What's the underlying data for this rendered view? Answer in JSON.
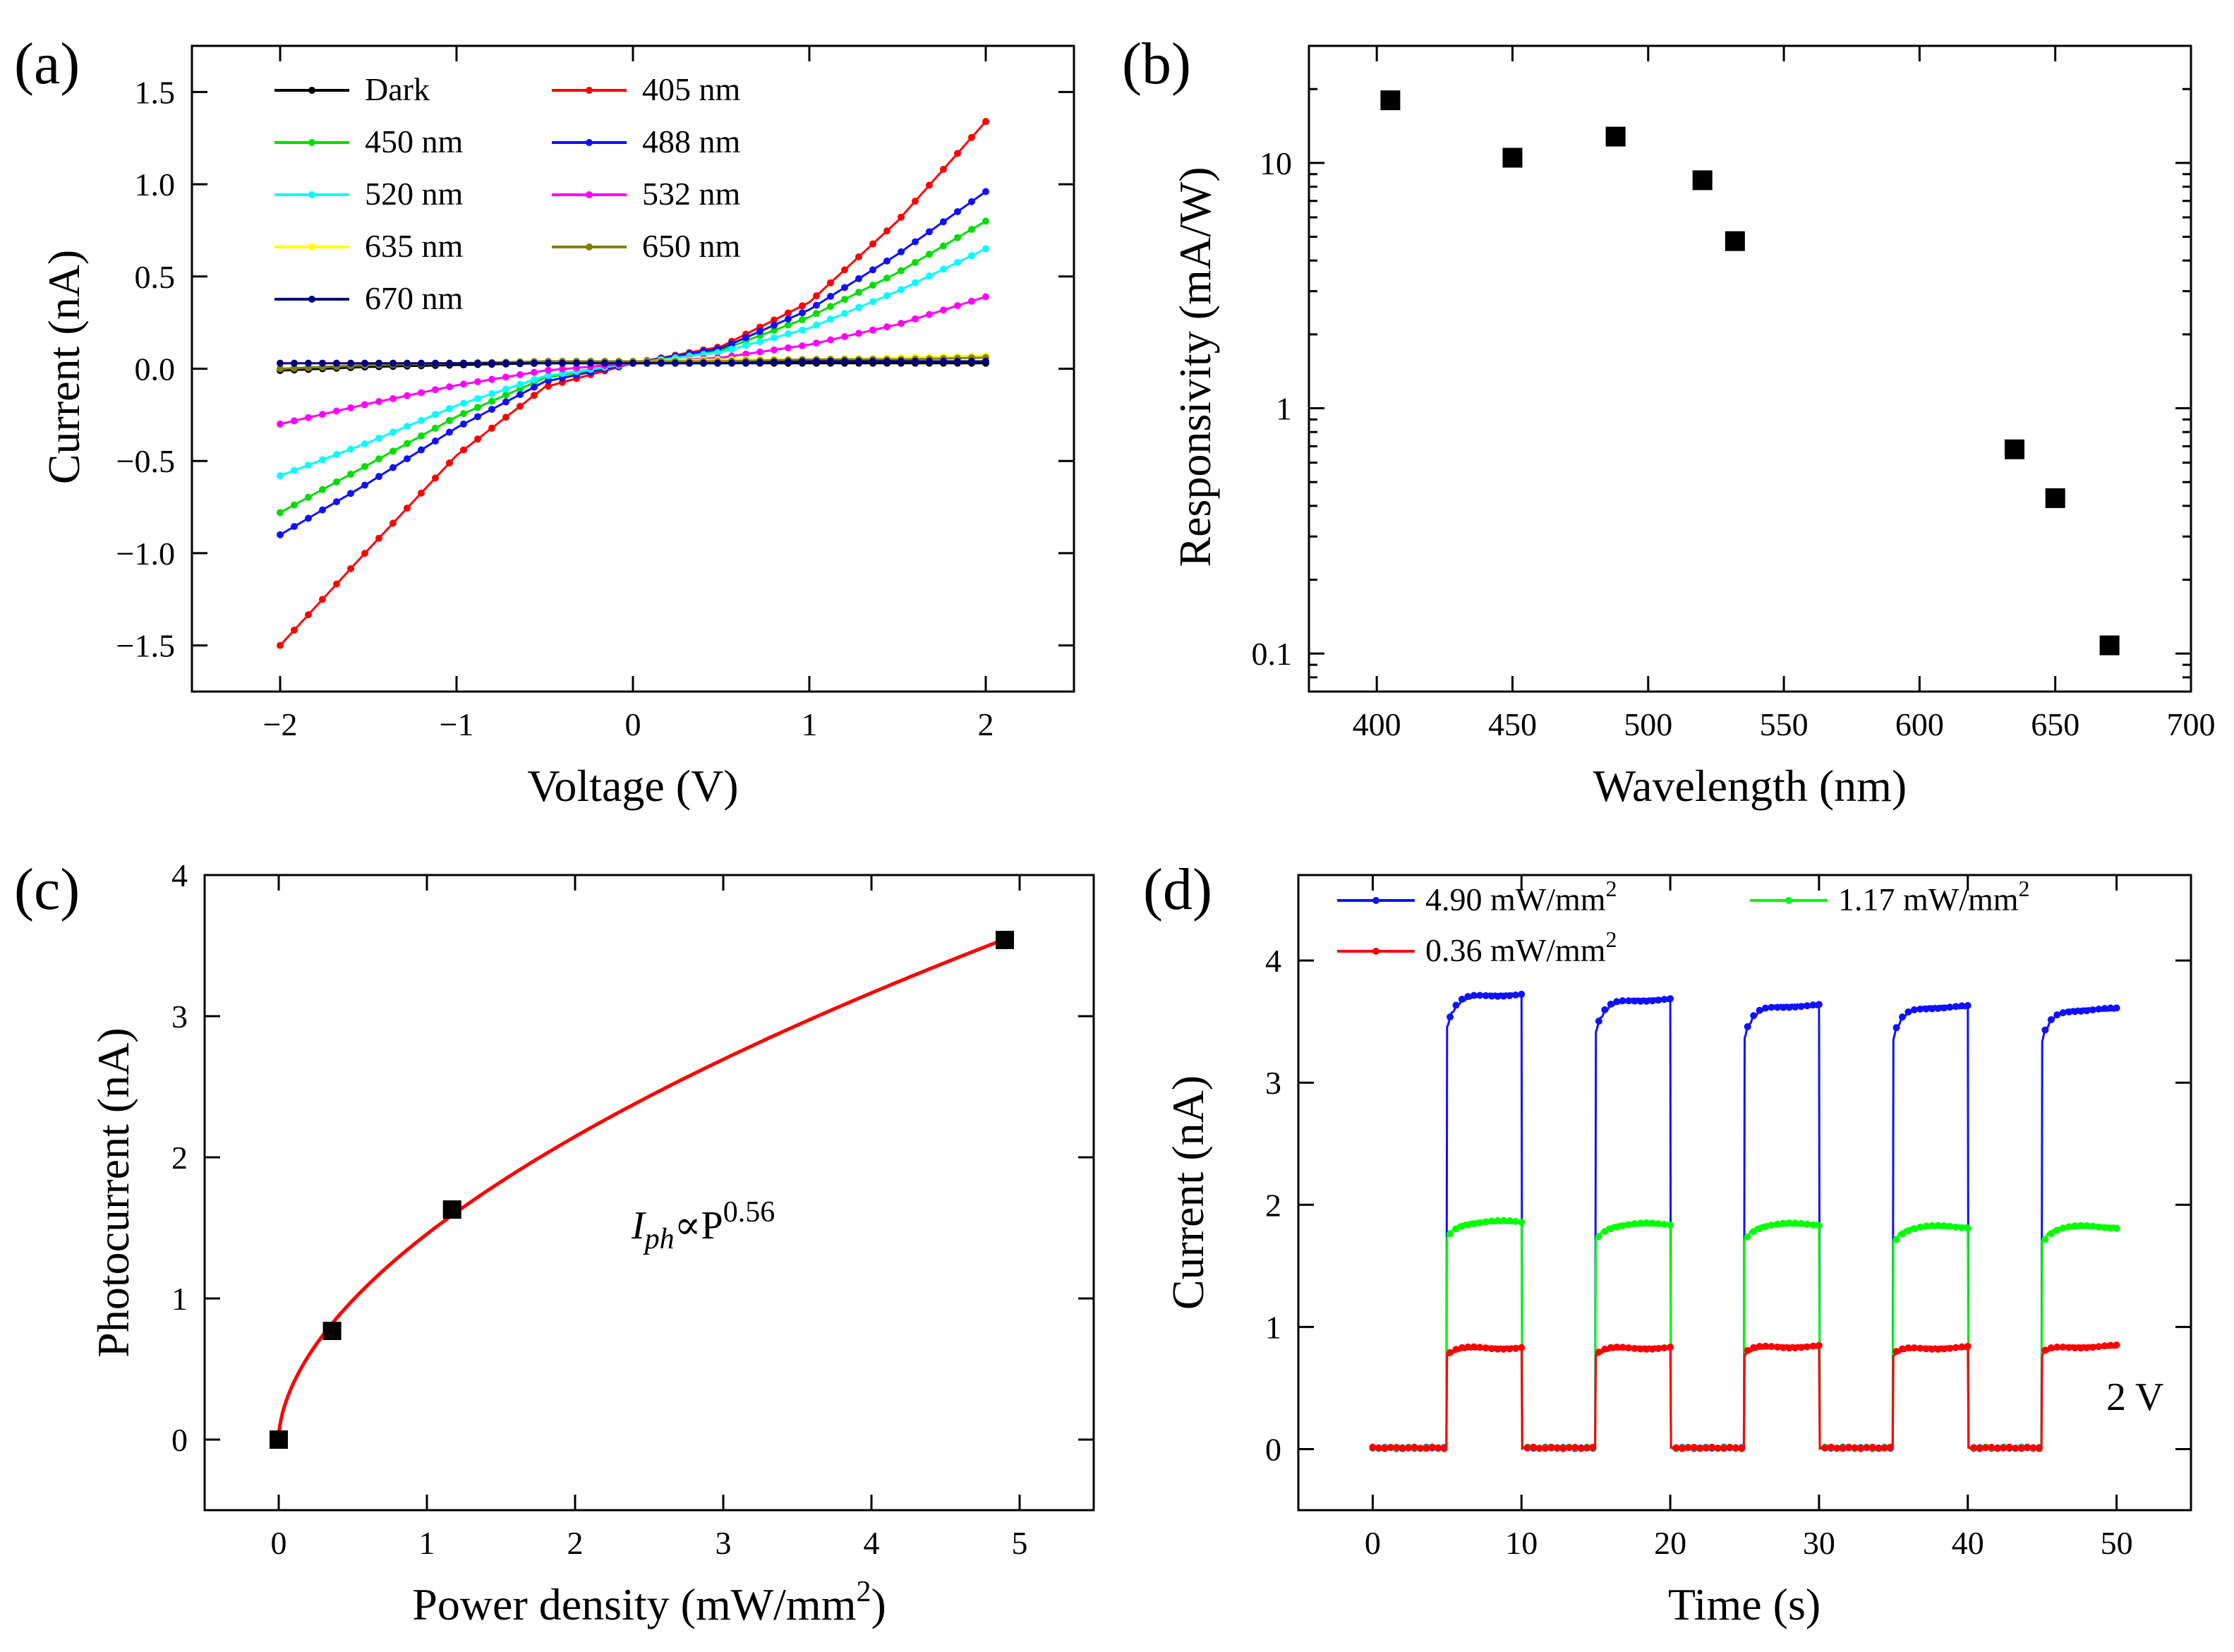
{
  "panels": [
    {
      "key": "a",
      "label": "(a)",
      "xlabel": "Voltage (V)",
      "ylabel": "Current (nA)",
      "xlim": [
        -2.5,
        2.5
      ],
      "ylim": [
        -1.75,
        1.75
      ],
      "xticks": [
        -2,
        -1,
        0,
        1,
        2
      ],
      "xtick_labels": [
        "−2",
        "−1",
        "0",
        "1",
        "2"
      ],
      "yticks": [
        -1.5,
        -1.0,
        -0.5,
        0.0,
        0.5,
        1.0,
        1.5
      ],
      "ytick_labels": [
        "−1.5",
        "−1.0",
        "−0.5",
        "0.0",
        "0.5",
        "1.0",
        "1.5"
      ],
      "legend": [
        "Dark",
        "405 nm",
        "450 nm",
        "488 nm",
        "520 nm",
        "532 nm",
        "635 nm",
        "650 nm",
        "670 nm"
      ]
    },
    {
      "key": "b",
      "label": "(b)",
      "xlabel": "Wavelength (nm)",
      "ylabel": "Responsivity (mA/W)",
      "xlim": [
        375,
        700
      ],
      "ylim_log": [
        0.07,
        30
      ],
      "xticks": [
        400,
        450,
        500,
        550,
        600,
        650,
        700
      ],
      "xtick_labels": [
        "400",
        "450",
        "500",
        "550",
        "600",
        "650",
        "700"
      ],
      "yticks": [
        0.1,
        1,
        10
      ],
      "ytick_labels": [
        "0.1",
        "1",
        "10"
      ]
    },
    {
      "key": "c",
      "label": "(c)",
      "xlabel": "Power density (mW/mm",
      "xlabel_sup": "2",
      "xlabel_end": ")",
      "ylabel": "Photocurrent (nA)",
      "xlim": [
        -0.5,
        5.5
      ],
      "ylim": [
        -0.5,
        4
      ],
      "xticks": [
        0,
        1,
        2,
        3,
        4,
        5
      ],
      "xtick_labels": [
        "0",
        "1",
        "2",
        "3",
        "4",
        "5"
      ],
      "yticks": [
        0,
        1,
        2,
        3,
        4
      ],
      "ytick_labels": [
        "0",
        "1",
        "2",
        "3",
        "4"
      ],
      "annotation_main": "I",
      "annotation_sub": "ph",
      "annotation_mid": "∝P",
      "annotation_sup": "0.56"
    },
    {
      "key": "d",
      "label": "(d)",
      "xlabel": "Time (s)",
      "ylabel": "Current (nA)",
      "xlim": [
        -5,
        55
      ],
      "ylim": [
        -0.5,
        4.7
      ],
      "xticks": [
        0,
        10,
        20,
        30,
        40,
        50
      ],
      "xtick_labels": [
        "0",
        "10",
        "20",
        "30",
        "40",
        "50"
      ],
      "yticks": [
        0,
        1,
        2,
        3,
        4
      ],
      "ytick_labels": [
        "0",
        "1",
        "2",
        "3",
        "4"
      ],
      "legend": [
        "4.90 mW/mm",
        "1.17 mW/mm",
        "0.36 mW/mm"
      ],
      "legend_sup": "2",
      "annotation": "2 V"
    }
  ],
  "colors": {
    "dark": "#000000",
    "nm405": "#ff0000",
    "nm450": "#00dd00",
    "nm488": "#1010ff",
    "nm520": "#00ffff",
    "nm532": "#ff00ff",
    "nm635": "#ffff00",
    "nm650": "#808000",
    "nm670": "#000080",
    "fit": "#ff0000",
    "high": "#1010ff",
    "mid": "#00ff00",
    "low": "#ff0000"
  },
  "chart_data": [
    {
      "panel": "a",
      "type": "line",
      "title": "",
      "xlabel": "Voltage (V)",
      "ylabel": "Current (nA)",
      "xlim": [
        -2.5,
        2.5
      ],
      "ylim": [
        -1.75,
        1.75
      ],
      "x": [
        -2.0,
        -1.5,
        -1.0,
        -0.5,
        0.0,
        0.5,
        1.0,
        1.5,
        2.0
      ],
      "series": [
        {
          "name": "Dark",
          "values": [
            -0.01,
            0.01,
            0.02,
            0.03,
            0.03,
            0.03,
            0.03,
            0.03,
            0.03
          ]
        },
        {
          "name": "405 nm",
          "values": [
            -1.5,
            -0.98,
            -0.47,
            -0.1,
            0.03,
            0.12,
            0.36,
            0.8,
            1.34
          ]
        },
        {
          "name": "450 nm",
          "values": [
            -0.78,
            -0.52,
            -0.26,
            -0.05,
            0.03,
            0.1,
            0.28,
            0.52,
            0.8
          ]
        },
        {
          "name": "488 nm",
          "values": [
            -0.9,
            -0.62,
            -0.32,
            -0.07,
            0.03,
            0.11,
            0.32,
            0.62,
            0.96
          ]
        },
        {
          "name": "520 nm",
          "values": [
            -0.58,
            -0.4,
            -0.2,
            -0.04,
            0.03,
            0.09,
            0.22,
            0.42,
            0.65
          ]
        },
        {
          "name": "532 nm",
          "values": [
            -0.3,
            -0.19,
            -0.09,
            -0.01,
            0.03,
            0.06,
            0.13,
            0.24,
            0.39
          ]
        },
        {
          "name": "635 nm",
          "values": [
            0.0,
            0.02,
            0.03,
            0.04,
            0.04,
            0.05,
            0.05,
            0.06,
            0.07
          ]
        },
        {
          "name": "650 nm",
          "values": [
            0.0,
            0.02,
            0.03,
            0.04,
            0.04,
            0.04,
            0.05,
            0.05,
            0.06
          ]
        },
        {
          "name": "670 nm",
          "values": [
            0.03,
            0.03,
            0.03,
            0.03,
            0.03,
            0.03,
            0.04,
            0.04,
            0.04
          ]
        }
      ]
    },
    {
      "panel": "b",
      "type": "scatter",
      "title": "",
      "xlabel": "Wavelength (nm)",
      "ylabel": "Responsivity (mA/W)",
      "yscale": "log",
      "xlim": [
        375,
        700
      ],
      "ylim": [
        0.07,
        30
      ],
      "x": [
        405,
        450,
        488,
        520,
        532,
        635,
        650,
        670
      ],
      "values": [
        18.0,
        10.5,
        12.8,
        8.5,
        4.8,
        0.68,
        0.43,
        0.108
      ]
    },
    {
      "panel": "c",
      "type": "scatter",
      "title": "",
      "xlabel": "Power density (mW/mm2)",
      "ylabel": "Photocurrent (nA)",
      "xlim": [
        -0.5,
        5.5
      ],
      "ylim": [
        -0.5,
        4
      ],
      "x": [
        0,
        0.36,
        1.17,
        4.9
      ],
      "values": [
        0,
        0.77,
        1.63,
        3.54
      ],
      "fit": {
        "type": "power",
        "coefficient": 1.456,
        "exponent": 0.56,
        "x_range": [
          0,
          4.9
        ]
      },
      "annotation": "Iph∝P0.56"
    },
    {
      "panel": "d",
      "type": "line",
      "title": "",
      "xlabel": "Time (s)",
      "ylabel": "Current (nA)",
      "xlim": [
        -5,
        55
      ],
      "ylim": [
        -0.5,
        4.7
      ],
      "on_intervals": [
        [
          5,
          10
        ],
        [
          15,
          20
        ],
        [
          25,
          30
        ],
        [
          35,
          40
        ],
        [
          45,
          50
        ]
      ],
      "series": [
        {
          "name": "4.90 mW/mm2",
          "dark": 0.01,
          "on_levels": [
            3.72,
            3.68,
            3.63,
            3.62,
            3.6
          ]
        },
        {
          "name": "1.17 mW/mm2",
          "dark": 0.01,
          "on_levels": [
            1.86,
            1.84,
            1.84,
            1.82,
            1.82
          ]
        },
        {
          "name": "0.36 mW/mm2",
          "dark": 0.01,
          "on_levels": [
            0.83,
            0.83,
            0.84,
            0.83,
            0.84
          ]
        }
      ],
      "annotation": "2 V"
    }
  ]
}
